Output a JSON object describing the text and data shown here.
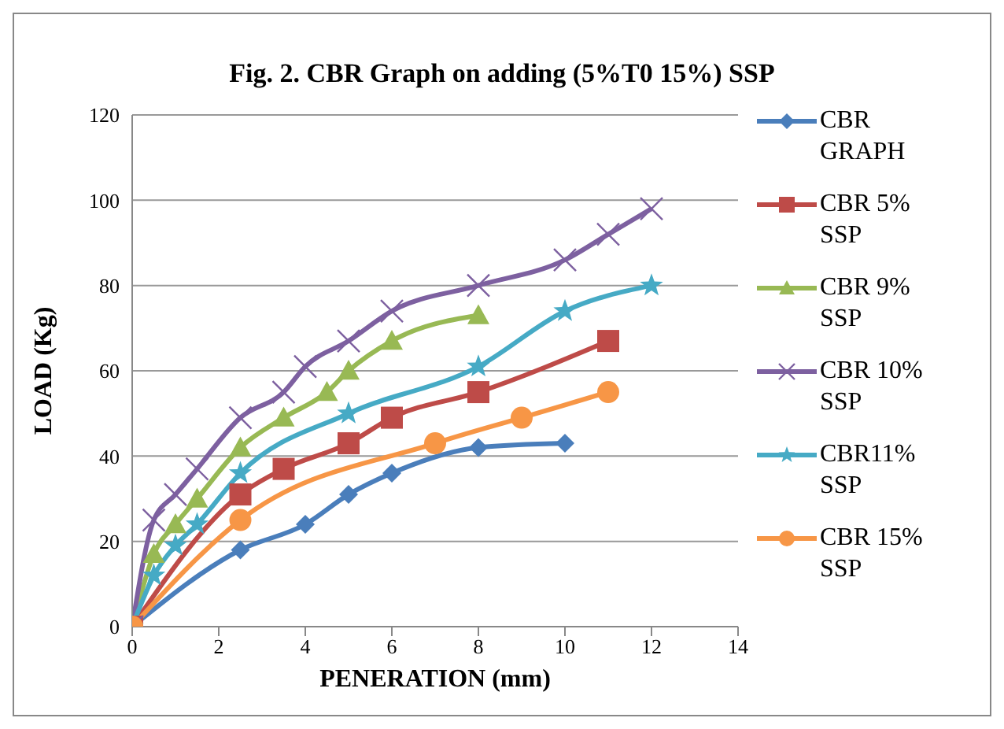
{
  "chart_data": {
    "type": "line",
    "title": "Fig. 2. CBR Graph on adding (5%T0 15%) SSP",
    "xlabel": "PENERATION (mm)",
    "ylabel": "LOAD (Kg)",
    "xlim": [
      0,
      14
    ],
    "xticks": [
      0,
      2,
      4,
      6,
      8,
      10,
      12,
      14
    ],
    "ylim": [
      0,
      120
    ],
    "yticks": [
      0,
      20,
      40,
      60,
      80,
      100,
      120
    ],
    "grid": "y",
    "legend": "right",
    "series": [
      {
        "name": "CBR GRAPH",
        "color": "#4a7ebb",
        "marker": "diamond",
        "x": [
          0,
          2.5,
          4,
          5,
          6,
          8,
          10
        ],
        "values": [
          0,
          18,
          24,
          31,
          36,
          42,
          43
        ]
      },
      {
        "name": "CBR 5% SSP",
        "color": "#be4b48",
        "marker": "square",
        "x": [
          0,
          2.5,
          3.5,
          5,
          6,
          8,
          11
        ],
        "values": [
          0,
          31,
          37,
          43,
          49,
          55,
          67
        ]
      },
      {
        "name": "CBR 9% SSP",
        "color": "#98b954",
        "marker": "triangle",
        "x": [
          0,
          0.5,
          1,
          1.5,
          2.5,
          3.5,
          4.5,
          5,
          6,
          8
        ],
        "values": [
          0,
          17,
          24,
          30,
          42,
          49,
          55,
          60,
          67,
          73
        ]
      },
      {
        "name": "CBR 10% SSP",
        "color": "#7d60a0",
        "marker": "cross",
        "x": [
          0,
          0.5,
          1,
          1.5,
          2.5,
          3.5,
          4,
          5,
          6,
          8,
          10,
          11,
          12
        ],
        "values": [
          0,
          25,
          31,
          37,
          49,
          55,
          61,
          67,
          74,
          80,
          86,
          92,
          98
        ]
      },
      {
        "name": "CBR11% SSP",
        "color": "#46aac5",
        "marker": "star",
        "x": [
          0,
          0.5,
          1,
          1.5,
          2.5,
          5,
          8,
          10,
          12
        ],
        "values": [
          0,
          12,
          19,
          24,
          36,
          50,
          61,
          74,
          80
        ]
      },
      {
        "name": "CBR 15% SSP",
        "color": "#f79646",
        "marker": "circle",
        "x": [
          0,
          2.5,
          7,
          9,
          11
        ],
        "values": [
          0,
          25,
          43,
          49,
          55
        ]
      }
    ]
  }
}
